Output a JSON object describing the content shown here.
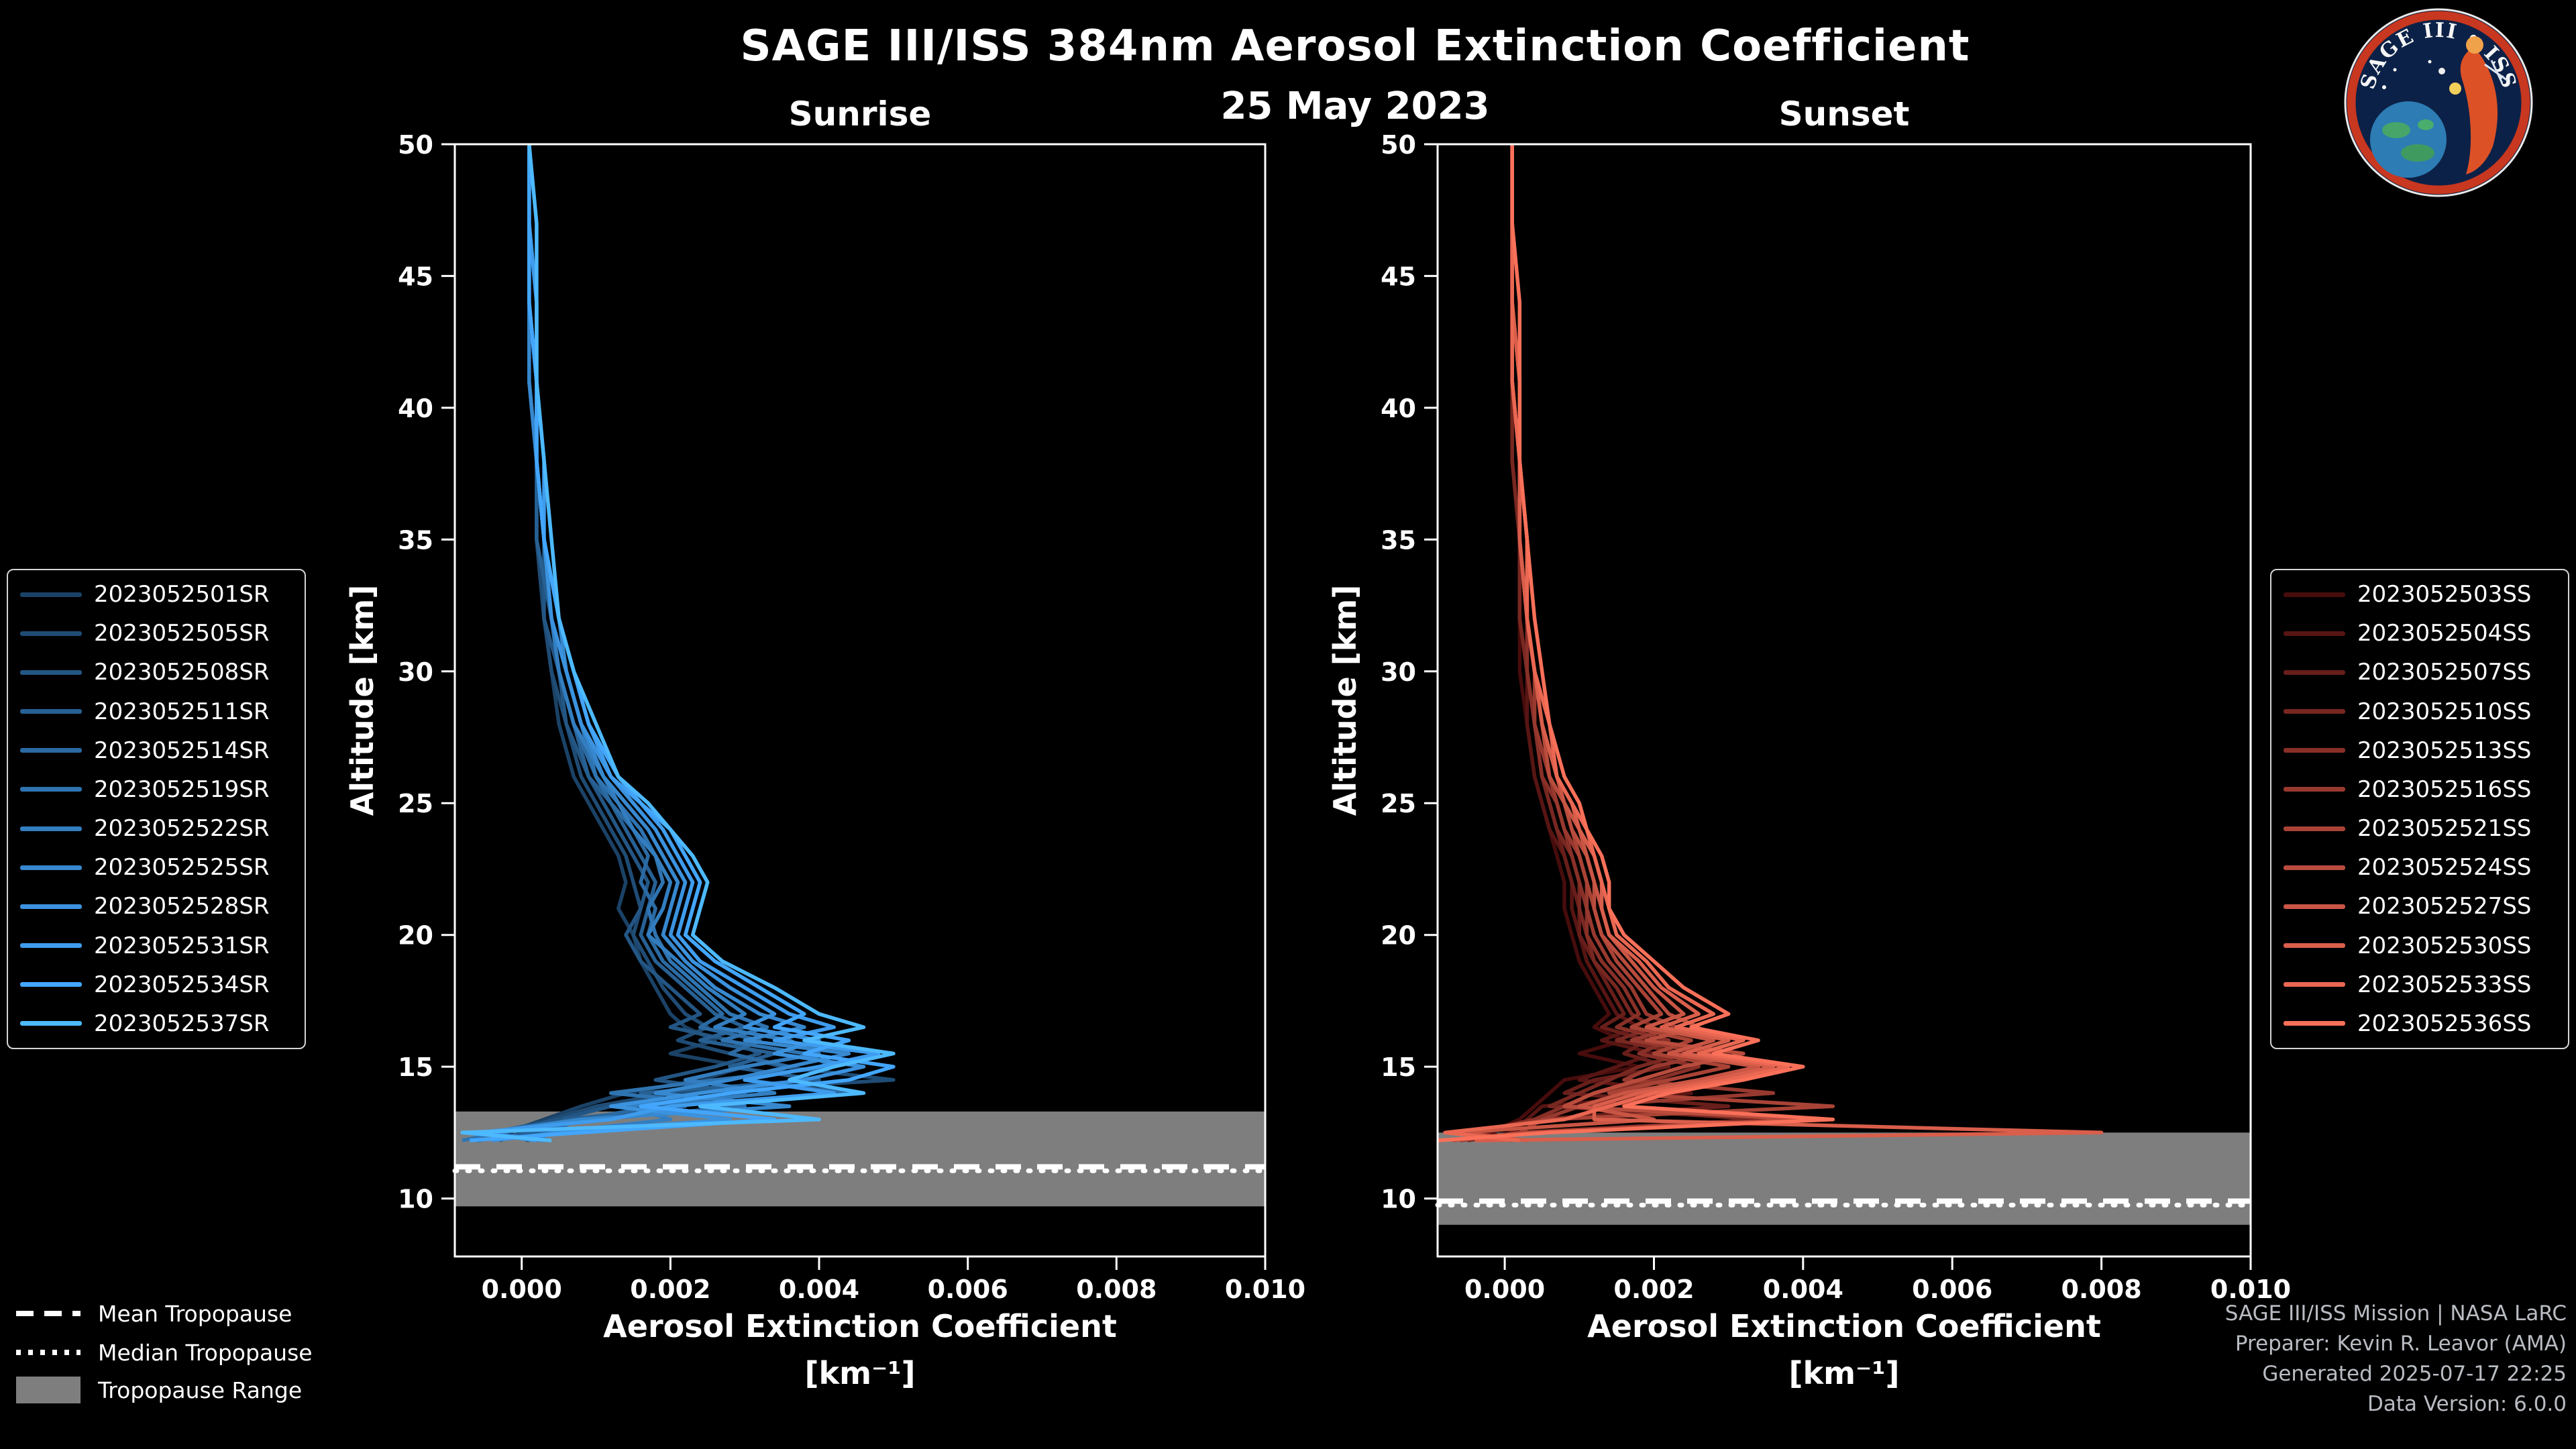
{
  "header": {
    "title": "SAGE III/ISS 384nm Aerosol Extinction Coefficient",
    "date": "25 May 2023"
  },
  "logo": {
    "title": "SAGE III • ISS"
  },
  "tropopause_legend": {
    "mean": "Mean Tropopause",
    "median": "Median Tropopause",
    "range": "Tropopause Range"
  },
  "credits": [
    "SAGE III/ISS Mission | NASA LaRC",
    "Preparer: Kevin R. Leavor (AMA)",
    "Generated 2025-07-17 22:25",
    "Data Version: 6.0.0"
  ],
  "chart_data": [
    {
      "type": "line",
      "title": "Sunrise",
      "xlabel": "Aerosol Extinction Coefficient",
      "xunit": "[km⁻¹]",
      "ylabel": "Altitude [km]",
      "xlim": [
        -0.0009,
        0.01
      ],
      "ylim": [
        7.8,
        50
      ],
      "xticks": [
        "0.000",
        "0.002",
        "0.004",
        "0.006",
        "0.008",
        "0.010"
      ],
      "yticks": [
        10,
        15,
        20,
        25,
        30,
        35,
        40,
        45,
        50
      ],
      "tropopause": {
        "mean": 11.2,
        "median": 11.05,
        "range": [
          9.7,
          13.3
        ]
      },
      "altitudes": [
        50,
        47,
        44,
        41,
        38,
        35,
        32,
        30,
        28,
        26,
        25,
        24,
        23,
        22,
        21,
        20,
        19,
        18,
        17,
        16.5,
        16,
        15.5,
        15,
        14.5,
        14,
        13.5,
        13,
        12.5,
        12.2
      ],
      "series": [
        {
          "name": "2023052501SR",
          "color": "#1b4266",
          "values": [
            0.0001,
            0.0001,
            0.0001,
            0.0001,
            0.0002,
            0.0002,
            0.0003,
            0.0004,
            0.0005,
            0.0007,
            0.0009,
            0.0011,
            0.0013,
            0.0014,
            0.0013,
            0.0015,
            0.0016,
            0.0018,
            0.002,
            0.0022,
            0.0026,
            0.002,
            0.003,
            0.0024,
            0.0014,
            0.0008,
            0.0003,
            -0.0002,
            0.0001
          ]
        },
        {
          "name": "2023052505SR",
          "color": "#1f4c75",
          "values": [
            0.0001,
            0.0001,
            0.0001,
            0.0002,
            0.0002,
            0.0002,
            0.0003,
            0.0004,
            0.0006,
            0.0008,
            0.001,
            0.0012,
            0.0014,
            0.0015,
            0.0016,
            0.0015,
            0.0017,
            0.0019,
            0.0022,
            0.0025,
            0.0021,
            0.0028,
            0.0035,
            0.005,
            0.002,
            0.001,
            0.0004,
            0.0,
            -0.0003
          ]
        },
        {
          "name": "2023052508SR",
          "color": "#235684",
          "values": [
            0.0001,
            0.0001,
            0.0001,
            0.0001,
            0.0002,
            0.0003,
            0.0003,
            0.0005,
            0.0006,
            0.0009,
            0.0011,
            0.0013,
            0.0015,
            0.0017,
            0.0016,
            0.0014,
            0.0016,
            0.002,
            0.0024,
            0.002,
            0.0028,
            0.0032,
            0.0026,
            0.0018,
            0.003,
            0.0012,
            0.0005,
            -0.0004,
            0.0002
          ]
        },
        {
          "name": "2023052511SR",
          "color": "#276093",
          "values": [
            0.0001,
            0.0001,
            0.0001,
            0.0002,
            0.0002,
            0.0002,
            0.0004,
            0.0005,
            0.0007,
            0.0009,
            0.0012,
            0.0014,
            0.0016,
            0.0018,
            0.0017,
            0.0016,
            0.0018,
            0.0022,
            0.0026,
            0.003,
            0.0024,
            0.0034,
            0.0028,
            0.004,
            0.0016,
            0.0022,
            0.0006,
            0.0002,
            -0.0006
          ]
        },
        {
          "name": "2023052514SR",
          "color": "#2b6aa2",
          "values": [
            0.0001,
            0.0001,
            0.0001,
            0.0001,
            0.0002,
            0.0003,
            0.0004,
            0.0005,
            0.0007,
            0.001,
            0.0012,
            0.0015,
            0.0017,
            0.0016,
            0.0018,
            0.0017,
            0.0019,
            0.0023,
            0.0027,
            0.0024,
            0.0032,
            0.0028,
            0.0036,
            0.003,
            0.0044,
            0.0018,
            0.0008,
            0.0003,
            0.0001
          ]
        },
        {
          "name": "2023052519SR",
          "color": "#2f74b1",
          "values": [
            0.0001,
            0.0001,
            0.0002,
            0.0002,
            0.0002,
            0.0003,
            0.0004,
            0.0006,
            0.0008,
            0.001,
            0.0013,
            0.0016,
            0.0018,
            0.0019,
            0.0017,
            0.0018,
            0.002,
            0.0024,
            0.0028,
            0.0033,
            0.0027,
            0.0038,
            0.0042,
            0.0026,
            0.0012,
            0.003,
            0.001,
            -0.0003,
            -0.0008
          ]
        },
        {
          "name": "2023052522SR",
          "color": "#337ec0",
          "values": [
            0.0001,
            0.0001,
            0.0001,
            0.0002,
            0.0002,
            0.0003,
            0.0004,
            0.0005,
            0.0007,
            0.0011,
            0.0013,
            0.0015,
            0.0018,
            0.002,
            0.0019,
            0.0017,
            0.0021,
            0.0025,
            0.003,
            0.0026,
            0.0036,
            0.004,
            0.003,
            0.0022,
            0.0034,
            0.0014,
            0.002,
            0.0004,
            0.0002
          ]
        },
        {
          "name": "2023052525SR",
          "color": "#3788cf",
          "values": [
            0.0001,
            0.0001,
            0.0001,
            0.0001,
            0.0002,
            0.0003,
            0.0005,
            0.0006,
            0.0008,
            0.0011,
            0.0014,
            0.0017,
            0.0019,
            0.0021,
            0.002,
            0.0019,
            0.0022,
            0.0026,
            0.0032,
            0.0038,
            0.003,
            0.0044,
            0.0036,
            0.0028,
            0.0018,
            0.0036,
            0.0008,
            -0.0005,
            0.0003
          ]
        },
        {
          "name": "2023052528SR",
          "color": "#3b92de",
          "values": [
            0.0001,
            0.0001,
            0.0001,
            0.0002,
            0.0002,
            0.0003,
            0.0004,
            0.0006,
            0.0008,
            0.0012,
            0.0015,
            0.0018,
            0.002,
            0.0022,
            0.0021,
            0.002,
            0.0023,
            0.0028,
            0.0034,
            0.003,
            0.004,
            0.0034,
            0.0046,
            0.0038,
            0.0024,
            0.0012,
            0.0028,
            0.0005,
            -0.0004
          ]
        },
        {
          "name": "2023052531SR",
          "color": "#3f9ced",
          "values": [
            0.0001,
            0.0001,
            0.0002,
            0.0002,
            0.0003,
            0.0003,
            0.0005,
            0.0007,
            0.0009,
            0.0012,
            0.0016,
            0.0019,
            0.0021,
            0.0023,
            0.0022,
            0.0021,
            0.0024,
            0.003,
            0.0036,
            0.0042,
            0.0034,
            0.0048,
            0.004,
            0.003,
            0.0042,
            0.002,
            0.0012,
            -0.0006,
            0.0002
          ]
        },
        {
          "name": "2023052534SR",
          "color": "#43a6fc",
          "values": [
            0.0001,
            0.0001,
            0.0001,
            0.0002,
            0.0002,
            0.0003,
            0.0005,
            0.0007,
            0.0009,
            0.0013,
            0.0016,
            0.002,
            0.0022,
            0.0024,
            0.0023,
            0.0022,
            0.0026,
            0.0032,
            0.0038,
            0.0034,
            0.0044,
            0.0038,
            0.005,
            0.0044,
            0.0028,
            0.0016,
            0.0034,
            0.0008,
            -0.0007
          ]
        },
        {
          "name": "2023052537SR",
          "color": "#4db9ff",
          "values": [
            0.0001,
            0.0002,
            0.0002,
            0.0002,
            0.0003,
            0.0004,
            0.0005,
            0.0007,
            0.001,
            0.0013,
            0.0017,
            0.002,
            0.0023,
            0.0025,
            0.0024,
            0.0023,
            0.0027,
            0.0034,
            0.004,
            0.0046,
            0.0038,
            0.005,
            0.0042,
            0.0036,
            0.0046,
            0.0024,
            0.004,
            -0.0008,
            0.0004
          ]
        }
      ]
    },
    {
      "type": "line",
      "title": "Sunset",
      "xlabel": "Aerosol Extinction Coefficient",
      "xunit": "[km⁻¹]",
      "ylabel": "Altitude [km]",
      "xlim": [
        -0.0009,
        0.01
      ],
      "ylim": [
        7.8,
        50
      ],
      "xticks": [
        "0.000",
        "0.002",
        "0.004",
        "0.006",
        "0.008",
        "0.010"
      ],
      "yticks": [
        10,
        15,
        20,
        25,
        30,
        35,
        40,
        45,
        50
      ],
      "tropopause": {
        "mean": 9.9,
        "median": 9.75,
        "range": [
          9.0,
          12.5
        ]
      },
      "altitudes": [
        50,
        47,
        44,
        41,
        38,
        35,
        32,
        30,
        28,
        26,
        25,
        24,
        23,
        22,
        21,
        20,
        19,
        18,
        17,
        16.5,
        16,
        15.5,
        15,
        14.5,
        14,
        13.5,
        13,
        12.5,
        12.2
      ],
      "series": [
        {
          "name": "2023052503SS",
          "color": "#470c0c",
          "values": [
            0.0001,
            0.0001,
            0.0001,
            0.0001,
            0.0001,
            0.0002,
            0.0002,
            0.0002,
            0.0003,
            0.0004,
            0.0005,
            0.0006,
            0.0007,
            0.0008,
            0.0008,
            0.0009,
            0.001,
            0.0012,
            0.0014,
            0.0012,
            0.0016,
            0.001,
            0.0018,
            0.0008,
            0.0006,
            0.0004,
            0.0002,
            -0.0002,
            0.0001
          ]
        },
        {
          "name": "2023052504SS",
          "color": "#571513",
          "values": [
            0.0001,
            0.0001,
            0.0001,
            0.0001,
            0.0001,
            0.0002,
            0.0002,
            0.0003,
            0.0003,
            0.0004,
            0.0005,
            0.0006,
            0.0008,
            0.0009,
            0.0009,
            0.001,
            0.0011,
            0.0013,
            0.0015,
            0.0018,
            0.0013,
            0.002,
            0.0015,
            0.001,
            0.0025,
            0.0005,
            0.0003,
            0.0001,
            -0.0003
          ]
        },
        {
          "name": "2023052507SS",
          "color": "#681e1a",
          "values": [
            0.0001,
            0.0001,
            0.0001,
            0.0001,
            0.0002,
            0.0002,
            0.0002,
            0.0003,
            0.0004,
            0.0005,
            0.0006,
            0.0007,
            0.0008,
            0.0009,
            0.001,
            0.001,
            0.0012,
            0.0014,
            0.0016,
            0.0013,
            0.0019,
            0.0016,
            0.0022,
            0.0012,
            0.0008,
            0.003,
            0.0004,
            -0.0003,
            0.0002
          ]
        },
        {
          "name": "2023052510SS",
          "color": "#782721",
          "values": [
            0.0001,
            0.0001,
            0.0001,
            0.0001,
            0.0001,
            0.0002,
            0.0002,
            0.0003,
            0.0004,
            0.0005,
            0.0006,
            0.0007,
            0.0009,
            0.001,
            0.001,
            0.0011,
            0.0012,
            0.0015,
            0.0017,
            0.002,
            0.0015,
            0.0024,
            0.0018,
            0.0014,
            0.001,
            0.0006,
            0.0035,
            0.0002,
            -0.0005
          ]
        },
        {
          "name": "2023052513SS",
          "color": "#883028",
          "values": [
            0.0001,
            0.0001,
            0.0001,
            0.0002,
            0.0002,
            0.0002,
            0.0003,
            0.0003,
            0.0004,
            0.0005,
            0.0007,
            0.0008,
            0.0009,
            0.001,
            0.0011,
            0.0011,
            0.0013,
            0.0016,
            0.0018,
            0.0015,
            0.0022,
            0.0018,
            0.0026,
            0.002,
            0.0012,
            0.0008,
            0.0004,
            -0.0004,
            0.0001
          ]
        },
        {
          "name": "2023052516SS",
          "color": "#98392f",
          "values": [
            0.0001,
            0.0001,
            0.0001,
            0.0001,
            0.0002,
            0.0002,
            0.0003,
            0.0004,
            0.0004,
            0.0006,
            0.0007,
            0.0008,
            0.001,
            0.0011,
            0.0011,
            0.0012,
            0.0014,
            0.0017,
            0.0019,
            0.0023,
            0.0017,
            0.0028,
            0.002,
            0.0016,
            0.0036,
            0.001,
            0.0005,
            0.0002,
            -0.0006
          ]
        },
        {
          "name": "2023052521SS",
          "color": "#a94336",
          "values": [
            0.0001,
            0.0001,
            0.0001,
            0.0001,
            0.0002,
            0.0002,
            0.0003,
            0.0004,
            0.0005,
            0.0006,
            0.0008,
            0.0009,
            0.001,
            0.0011,
            0.0012,
            0.0013,
            0.0015,
            0.0018,
            0.0021,
            0.0017,
            0.0025,
            0.002,
            0.003,
            0.0022,
            0.0014,
            0.0044,
            0.0006,
            -0.0005,
            0.0002
          ]
        },
        {
          "name": "2023052524SS",
          "color": "#b94c3d",
          "values": [
            0.0001,
            0.0001,
            0.0001,
            0.0002,
            0.0002,
            0.0003,
            0.0003,
            0.0004,
            0.0005,
            0.0006,
            0.0008,
            0.0009,
            0.0011,
            0.0012,
            0.0012,
            0.0013,
            0.0016,
            0.0019,
            0.0022,
            0.0026,
            0.0019,
            0.0032,
            0.0024,
            0.0018,
            0.0012,
            0.0008,
            0.004,
            0.0003,
            -0.0007
          ]
        },
        {
          "name": "2023052527SS",
          "color": "#c95544",
          "values": [
            0.0001,
            0.0001,
            0.0001,
            0.0001,
            0.0002,
            0.0002,
            0.0003,
            0.0004,
            0.0005,
            0.0007,
            0.0008,
            0.001,
            0.0011,
            0.0012,
            0.0013,
            0.0014,
            0.0017,
            0.002,
            0.0024,
            0.0019,
            0.0028,
            0.0022,
            0.0034,
            0.0026,
            0.0016,
            0.001,
            0.002,
            -0.0006,
            0.0003
          ]
        },
        {
          "name": "2023052530SS",
          "color": "#d95e4b",
          "values": [
            0.0001,
            0.0001,
            0.0001,
            0.0002,
            0.0002,
            0.0002,
            0.0003,
            0.0004,
            0.0005,
            0.0007,
            0.0009,
            0.001,
            0.0012,
            0.0013,
            0.0013,
            0.0014,
            0.0018,
            0.0021,
            0.0026,
            0.0021,
            0.003,
            0.0024,
            0.0036,
            0.0028,
            0.0018,
            0.0012,
            0.0012,
            0.008,
            -0.0004
          ]
        },
        {
          "name": "2023052533SS",
          "color": "#ea6752",
          "values": [
            0.0001,
            0.0001,
            0.0001,
            0.0001,
            0.0002,
            0.0003,
            0.0003,
            0.0004,
            0.0006,
            0.0007,
            0.0009,
            0.0011,
            0.0012,
            0.0013,
            0.0014,
            0.0015,
            0.0019,
            0.0022,
            0.0028,
            0.0023,
            0.0032,
            0.0026,
            0.0038,
            0.003,
            0.002,
            0.0014,
            0.0008,
            -0.0008,
            0.0002
          ]
        },
        {
          "name": "2023052536SS",
          "color": "#fa7059",
          "values": [
            0.0001,
            0.0001,
            0.0002,
            0.0002,
            0.0002,
            0.0003,
            0.0004,
            0.0005,
            0.0006,
            0.0008,
            0.001,
            0.0011,
            0.0013,
            0.0014,
            0.0014,
            0.0016,
            0.002,
            0.0024,
            0.003,
            0.0025,
            0.0034,
            0.0028,
            0.004,
            0.0032,
            0.0022,
            0.0016,
            0.0044,
            0.0006,
            -0.0009
          ]
        }
      ]
    }
  ]
}
